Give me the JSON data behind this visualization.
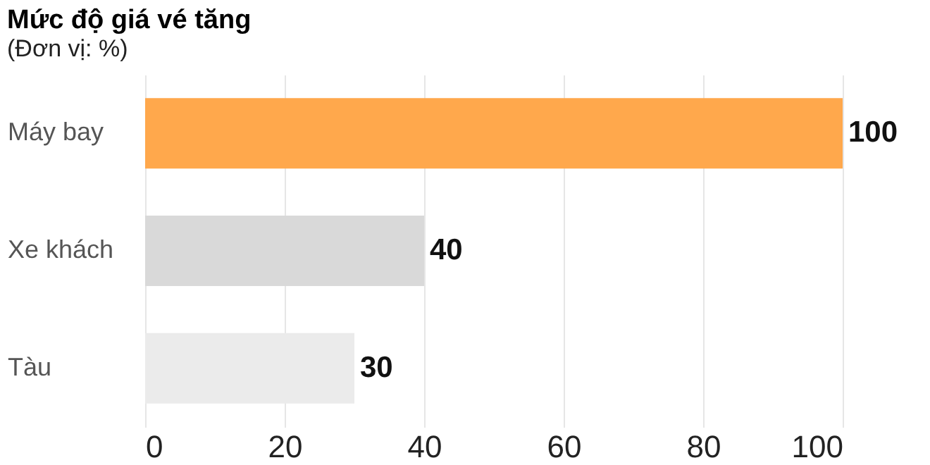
{
  "chart_data": {
    "type": "bar",
    "orientation": "horizontal",
    "title": "Mức độ giá vé tăng",
    "subtitle": "(Đơn vị: %)",
    "categories": [
      "Máy bay",
      "Xe khách",
      "Tàu"
    ],
    "values": [
      100,
      40,
      30
    ],
    "colors": [
      "#ffa84c",
      "#d9d9d9",
      "#ebebeb"
    ],
    "xlim": [
      0,
      100
    ],
    "xticks": [
      0,
      20,
      40,
      60,
      80,
      100
    ],
    "grid": "x",
    "data_labels": true
  }
}
